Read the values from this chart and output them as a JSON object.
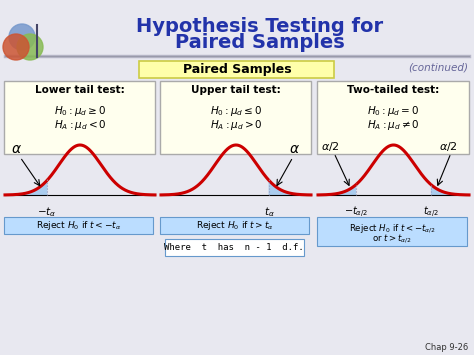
{
  "title_line1": "Hypothesis Testing for",
  "title_line2": "Paired Samples",
  "title_color": "#2233aa",
  "continued_text": "(continued)",
  "continued_color": "#666699",
  "bg_color": "#e8e8f0",
  "yellow_bg": "#ffffdd",
  "yellow_border": "#cccc44",
  "blue_reject_bg": "#bbddff",
  "blue_reject_border": "#6699cc",
  "where_bg": "#ffffff",
  "where_border": "#6699cc",
  "header_box_text": "Paired Samples",
  "box1_title": "Lower tail test:",
  "box1_h0": "$H_0: \\mu_d \\geq 0$",
  "box1_ha": "$H_A: \\mu_d < 0$",
  "box2_title": "Upper tail test:",
  "box2_h0": "$H_0: \\mu_d \\leq 0$",
  "box2_ha": "$H_A: \\mu_d > 0$",
  "box3_title": "Two-tailed test:",
  "box3_h0": "$H_0: \\mu_d = 0$",
  "box3_ha": "$H_A: \\mu_d \\neq 0$",
  "reject1": "$\\mathrm{Reject}\\ H_0\\ \\mathrm{if}\\ t < -t_\\alpha$",
  "reject2": "$\\mathrm{Reject}\\ H_0\\ \\mathrm{if}\\ t > t_\\alpha$",
  "reject3_line1": "$\\mathrm{Reject}\\ H_0\\ \\mathrm{if}\\ t < -t_{\\alpha/2}$",
  "reject3_line2": "$\\mathrm{or}\\ t > t_{\\alpha/2}$",
  "where_text": "Where  t  has  n - 1  d.f.",
  "chap_text": "Chap 9-26",
  "curve_color": "#cc0000",
  "shade_color": "#aaccee",
  "vline_color": "#9999bb"
}
